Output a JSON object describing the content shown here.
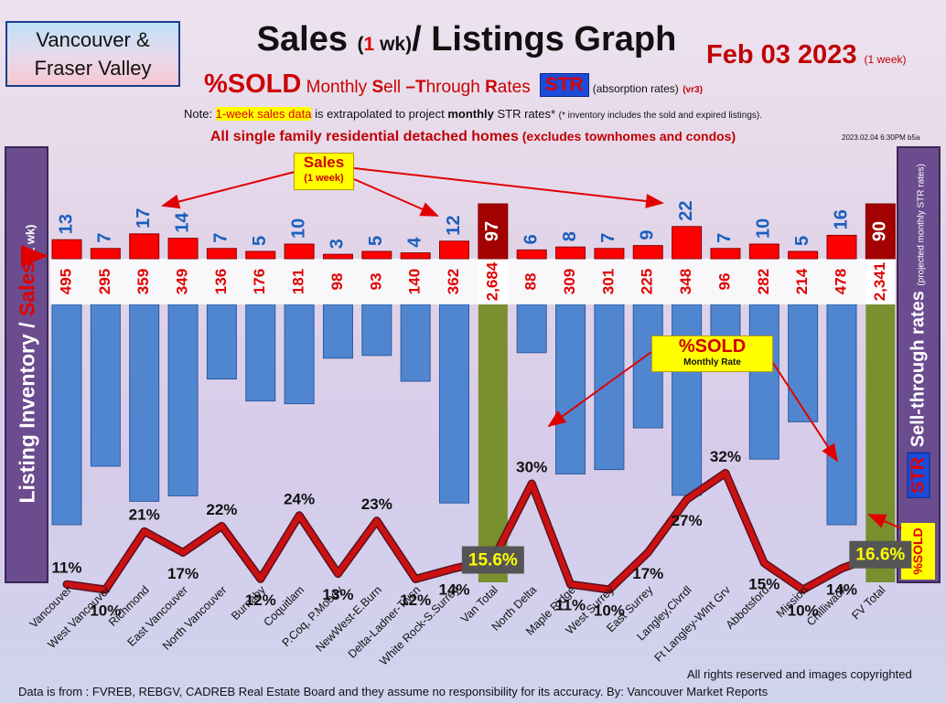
{
  "header": {
    "region_line1": "Vancouver &",
    "region_line2": "Fraser Valley",
    "title_a": "Sales",
    "title_paren_open": "(",
    "title_one": "1",
    "title_wk": " wk)",
    "title_b": "/ Listings Graph",
    "date": "Feb 03  2023",
    "date_note": "(1 week)",
    "pct_sold": "%SOLD",
    "str_phrase_pre": " Monthly ",
    "str_s": "S",
    "str_ell": "ell ",
    "str_t": "–T",
    "str_hrough": "hrough ",
    "str_r": "R",
    "str_ates": "ates",
    "str_badge": "STR",
    "absorption": "(absorption rates)",
    "version": "(vr3)"
  },
  "note": {
    "prefix": "Note: ",
    "highlight": "1-week sales data",
    "middle": " is extrapolated to project ",
    "bold": "monthly",
    "suffix": " STR rates* ",
    "fine": "(* inventory includes the sold and expired listings)."
  },
  "detached_main": "All single family residential detached homes",
  "detached_paren": " (excludes townhomes and condos)",
  "timestamp": "2023.02.04 6:30PM b5a",
  "left_axis": {
    "part1": "Listing Inventory / ",
    "part2": "Sales",
    "part3": " (1 wk)"
  },
  "right_axis": {
    "part1": "%SOLD ",
    "str": "STR",
    "part2": " Sell-through rates ",
    "part3": "(projected monthly STR rates)"
  },
  "sold_tag": "%SOLD",
  "sales_callout": {
    "title": "Sales",
    "sub": "(1 week)"
  },
  "sold_callout": {
    "title": "%SOLD",
    "sub": "Monthly Rate"
  },
  "footer": {
    "rights": "All rights reserved and  images copyrighted",
    "source": "Data is from : FVREB, REBGV, CADREB Real Estate Board and they assume no responsibility for its accuracy. By: Vancouver Market Reports"
  },
  "colors": {
    "sales_bar": "#ff0000",
    "sales_total_bar": "#a30000",
    "listing_bar": "#4f86cf",
    "total_bar": "#7a8f2e",
    "str_line": "#cc1111",
    "label_blue": "#1a5fbf",
    "label_red": "#e00000"
  },
  "chart_data": {
    "type": "bar",
    "categories": [
      "Vancouver",
      "West Vancouver",
      "Richmond",
      "East Vancouver",
      "North Vancouver",
      "Burnaby",
      "Coquitlam",
      "P.Coq, P.Moody",
      "NewWest-E.Burn",
      "Delta-Ladner-Twsn",
      "White Rock-S.Surrey",
      "Van Total",
      "North Delta",
      "Maple Ridge",
      "West Surrey",
      "East Surrey",
      "Langley,Clvrdl",
      "Ft Langley-Wlnt Grv",
      "Abbotsford",
      "Mission",
      "Chilliwack",
      "FV Total"
    ],
    "series": [
      {
        "name": "Sales (1 wk)",
        "values": [
          13,
          7,
          17,
          14,
          7,
          5,
          10,
          3,
          5,
          4,
          12,
          97,
          6,
          8,
          7,
          9,
          22,
          7,
          10,
          5,
          16,
          90
        ]
      },
      {
        "name": "Listing Inventory",
        "values": [
          495,
          295,
          359,
          349,
          136,
          176,
          181,
          98,
          93,
          140,
          362,
          2684,
          88,
          309,
          301,
          225,
          348,
          96,
          282,
          214,
          478,
          2341
        ],
        "labels": [
          "495",
          "295",
          "359",
          "349",
          "136",
          "176",
          "181",
          "98",
          "93",
          "140",
          "362",
          "2,684",
          "88",
          "309",
          "301",
          "225",
          "348",
          "96",
          "282",
          "214",
          "478",
          "2,341"
        ]
      },
      {
        "name": "%SOLD Monthly Sell-Through Rate",
        "values": [
          11,
          10,
          21,
          17,
          22,
          12,
          24,
          13,
          23,
          12,
          14,
          15.6,
          30,
          11,
          10,
          17,
          27,
          32,
          15,
          10,
          14,
          16.6
        ],
        "labels": [
          "11%",
          "10%",
          "21%",
          "17%",
          "22%",
          "12%",
          "24%",
          "13%",
          "23%",
          "12%",
          "14%",
          "15.6%",
          "30%",
          "11%",
          "10%",
          "17%",
          "27%",
          "32%",
          "15%",
          "10%",
          "14%",
          "16.6%"
        ]
      }
    ],
    "total_categories": [
      "Van Total",
      "FV Total"
    ],
    "grid": false
  }
}
